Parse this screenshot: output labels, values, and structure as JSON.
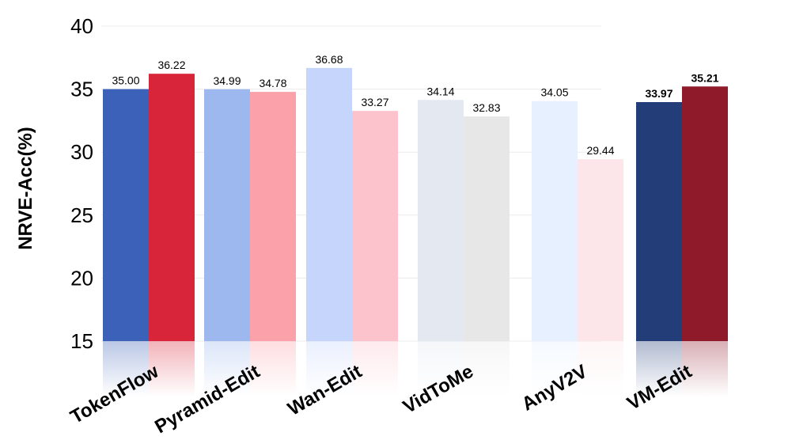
{
  "chart_data": {
    "type": "bar",
    "title": "",
    "xlabel": "",
    "ylabel": "NRVE-Acc(%)",
    "ylim": [
      15,
      40
    ],
    "yticks": [
      15,
      20,
      25,
      30,
      35,
      40
    ],
    "grid": true,
    "categories": [
      "TokenFlow",
      "Pyramid-Edit",
      "Wan-Edit",
      "VidToMe",
      "AnyV2V",
      "VM-Edit"
    ],
    "series": [
      {
        "values": [
          35.0,
          34.99,
          36.68,
          34.14,
          34.05,
          33.97
        ],
        "labels": [
          "35.00",
          "34.99",
          "36.68",
          "34.14",
          "34.05",
          "33.97"
        ],
        "colors": [
          "#3b62b8",
          "#9cb8ee",
          "#c5d5fb",
          "#e3e8f1",
          "#e6f0ff",
          "#223d78"
        ]
      },
      {
        "values": [
          36.22,
          34.78,
          33.27,
          32.83,
          29.44,
          35.21
        ],
        "labels": [
          "36.22",
          "34.78",
          "33.27",
          "32.83",
          "29.44",
          "35.21"
        ],
        "colors": [
          "#d9253a",
          "#fba1a9",
          "#fdc3cd",
          "#e7e7e7",
          "#fde6e9",
          "#8e1a2a"
        ]
      }
    ],
    "highlight_category": "VM-Edit"
  }
}
